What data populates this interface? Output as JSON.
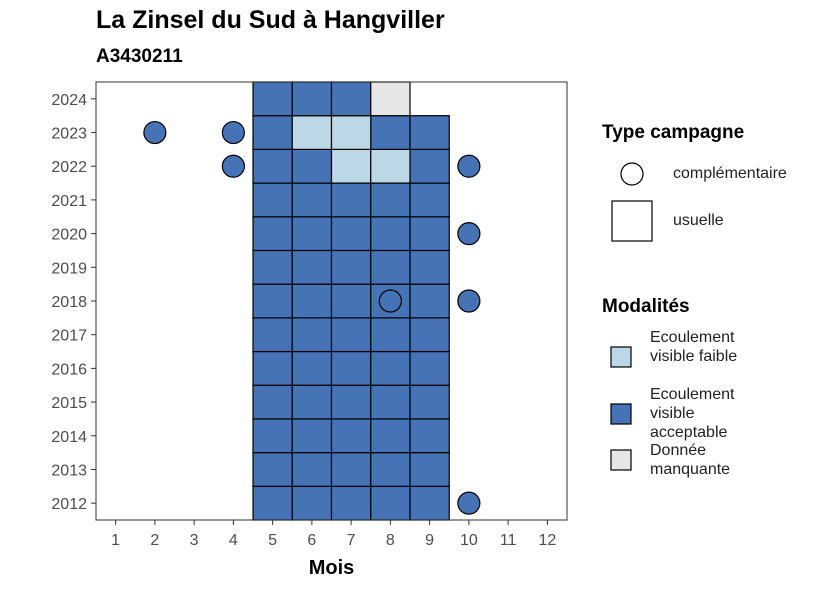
{
  "title": "La Zinsel du Sud à Hangviller",
  "subtitle": "A3430211",
  "legend_type": {
    "title": "Type campagne",
    "circle_label": "complémentaire",
    "square_label": "usuelle"
  },
  "legend_modalites": {
    "title": "Modalités",
    "items": [
      {
        "label": "Ecoulement visible faible",
        "color": "#bcd8e6"
      },
      {
        "label": "Ecoulement visible acceptable",
        "color": "#4573b5"
      },
      {
        "label": "Donnée manquante",
        "color": "#e6e6e6"
      }
    ]
  },
  "chart_data": {
    "type": "heatmap",
    "title": "La Zinsel du Sud à Hangviller",
    "subtitle": "A3430211",
    "xlabel": "Mois",
    "ylabel": "",
    "x_ticks": [
      "1",
      "2",
      "3",
      "4",
      "5",
      "6",
      "7",
      "8",
      "9",
      "10",
      "11",
      "12"
    ],
    "y_ticks": [
      "2012",
      "2013",
      "2014",
      "2015",
      "2016",
      "2017",
      "2018",
      "2019",
      "2020",
      "2021",
      "2022",
      "2023",
      "2024"
    ],
    "xlim": [
      0.5,
      12.5
    ],
    "ylim": [
      2011.5,
      2024.5
    ],
    "colors": {
      "Ecoulement visible faible": "#bcd8e6",
      "Ecoulement visible acceptable": "#4573b5",
      "Donnée manquante": "#e6e6e6"
    },
    "usuelle": [
      {
        "year": 2012,
        "months": [
          5,
          6,
          7,
          8,
          9
        ],
        "modalite": "Ecoulement visible acceptable"
      },
      {
        "year": 2013,
        "months": [
          5,
          6,
          7,
          8,
          9
        ],
        "modalite": "Ecoulement visible acceptable"
      },
      {
        "year": 2014,
        "months": [
          5,
          6,
          7,
          8,
          9
        ],
        "modalite": "Ecoulement visible acceptable"
      },
      {
        "year": 2015,
        "months": [
          5,
          6,
          7,
          8,
          9
        ],
        "modalite": "Ecoulement visible acceptable"
      },
      {
        "year": 2016,
        "months": [
          5,
          6,
          7,
          8,
          9
        ],
        "modalite": "Ecoulement visible acceptable"
      },
      {
        "year": 2017,
        "months": [
          5,
          6,
          7,
          8,
          9
        ],
        "modalite": "Ecoulement visible acceptable"
      },
      {
        "year": 2018,
        "months": [
          5,
          6,
          7,
          8,
          9
        ],
        "modalite": "Ecoulement visible acceptable"
      },
      {
        "year": 2019,
        "months": [
          5,
          6,
          7,
          8,
          9
        ],
        "modalite": "Ecoulement visible acceptable"
      },
      {
        "year": 2020,
        "months": [
          5,
          6,
          7,
          8,
          9
        ],
        "modalite": "Ecoulement visible acceptable"
      },
      {
        "year": 2021,
        "months": [
          5,
          6,
          7,
          8,
          9
        ],
        "modalite": "Ecoulement visible acceptable"
      },
      {
        "year": 2022,
        "months": [
          5,
          6,
          9
        ],
        "modalite": "Ecoulement visible acceptable"
      },
      {
        "year": 2022,
        "months": [
          7,
          8
        ],
        "modalite": "Ecoulement visible faible"
      },
      {
        "year": 2023,
        "months": [
          5,
          8,
          9
        ],
        "modalite": "Ecoulement visible acceptable"
      },
      {
        "year": 2023,
        "months": [
          6,
          7
        ],
        "modalite": "Ecoulement visible faible"
      },
      {
        "year": 2024,
        "months": [
          5,
          6,
          7
        ],
        "modalite": "Ecoulement visible acceptable"
      },
      {
        "year": 2024,
        "months": [
          8
        ],
        "modalite": "Donnée manquante"
      }
    ],
    "complementaire": [
      {
        "year": 2023,
        "month": 2,
        "modalite": "Ecoulement visible acceptable"
      },
      {
        "year": 2023,
        "month": 4,
        "modalite": "Ecoulement visible acceptable"
      },
      {
        "year": 2022,
        "month": 4,
        "modalite": "Ecoulement visible acceptable"
      },
      {
        "year": 2022,
        "month": 10,
        "modalite": "Ecoulement visible acceptable"
      },
      {
        "year": 2020,
        "month": 10,
        "modalite": "Ecoulement visible acceptable"
      },
      {
        "year": 2018,
        "month": 8,
        "modalite": "Ecoulement visible acceptable"
      },
      {
        "year": 2018,
        "month": 10,
        "modalite": "Ecoulement visible acceptable"
      },
      {
        "year": 2012,
        "month": 10,
        "modalite": "Ecoulement visible acceptable"
      }
    ]
  }
}
